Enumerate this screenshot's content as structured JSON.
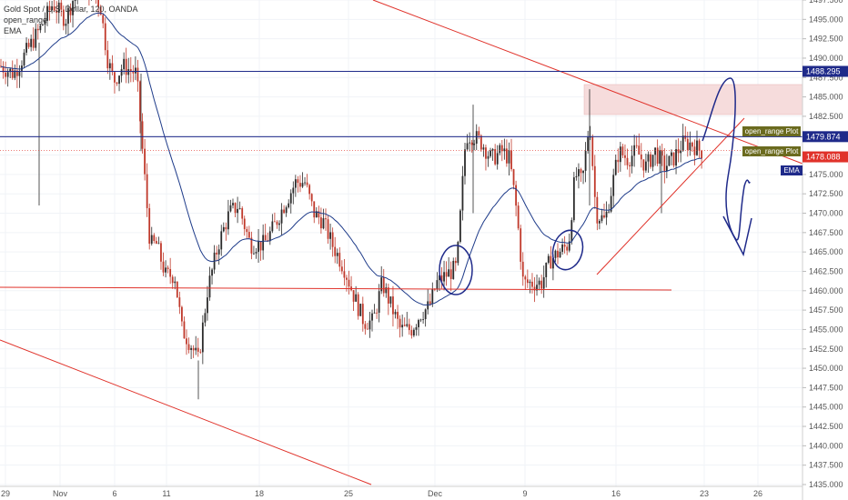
{
  "legend": {
    "symbol_line": "Gold Spot / U.S. Dollar, 120, OANDA",
    "indicator_1": "open_range",
    "indicator_2": "EMA"
  },
  "chart_data": {
    "type": "candlestick",
    "ylim": [
      1435.0,
      1497.5
    ],
    "y_ticks": [
      1497.5,
      1495.0,
      1492.5,
      1490.0,
      1487.5,
      1485.0,
      1482.5,
      1480.0,
      1477.5,
      1475.0,
      1472.5,
      1470.0,
      1467.5,
      1465.0,
      1462.5,
      1460.0,
      1457.5,
      1455.0,
      1452.5,
      1450.0,
      1447.5,
      1445.0,
      1442.5,
      1440.0,
      1437.5,
      1435.0
    ],
    "x_ticks": [
      "29",
      "Nov",
      "6",
      "11",
      "18",
      "25",
      "Dec",
      "9",
      "16",
      "23",
      "26"
    ],
    "price_labels": [
      {
        "name": "resistance",
        "value": "1488.295",
        "color": "#1f2a8a"
      },
      {
        "name": "open_range_high",
        "value": "1479.874",
        "color": "#1f2a8a"
      },
      {
        "name": "last",
        "value": "1478.088",
        "color": "#e0322a"
      }
    ],
    "indicator_tags": [
      {
        "name": "open_range_tag_1",
        "text": "open_range Plot",
        "color": "#6b6b1f"
      },
      {
        "name": "open_range_tag_2",
        "text": "open_range Plot",
        "color": "#6b6b1f"
      },
      {
        "name": "ema_tag",
        "text": "EMA",
        "color": "#1f2a8a"
      }
    ],
    "horizontal_levels": [
      {
        "name": "resistance-line",
        "price": 1488.295,
        "color": "#1f2a8a"
      },
      {
        "name": "open-range-line",
        "price": 1479.874,
        "color": "#1f2a8a"
      },
      {
        "name": "support-line",
        "price": 1460.0,
        "color": "#e0322a"
      }
    ],
    "colors": {
      "up": "#2b2b2b",
      "down": "#c0392b",
      "ema": "#1f3c8a",
      "trend": "#e0322a",
      "zone": "#f6dcdc"
    }
  }
}
